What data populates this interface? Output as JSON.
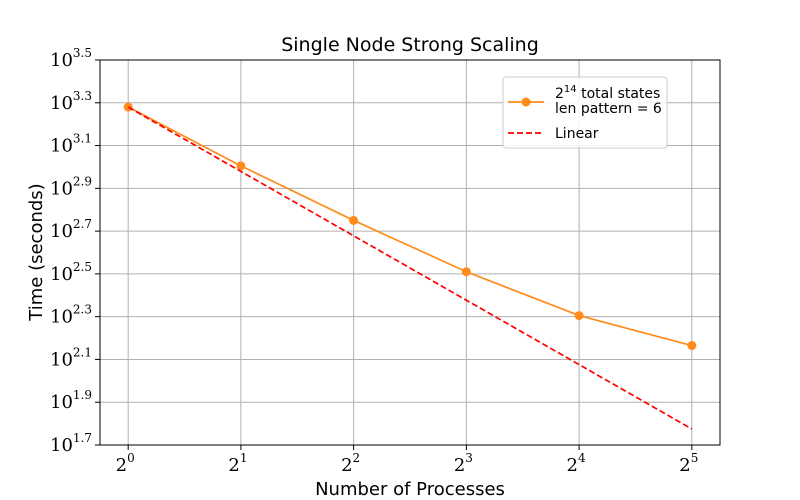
{
  "chart_data": {
    "type": "line",
    "title": "Single Node Strong Scaling",
    "xlabel": "Number of Processes",
    "ylabel": "Time (seconds)",
    "x_scale": "log2",
    "y_scale": "log10",
    "x": [
      1,
      2,
      4,
      8,
      16,
      32
    ],
    "x_tick_labels": [
      "2",
      "2",
      "2",
      "2",
      "2",
      "2"
    ],
    "x_tick_exponents": [
      "0",
      "1",
      "2",
      "3",
      "4",
      "5"
    ],
    "y_ticks": [
      {
        "base": "10",
        "exp": "3.5"
      },
      {
        "base": "10",
        "exp": "3.3"
      },
      {
        "base": "10",
        "exp": "3.1"
      },
      {
        "base": "10",
        "exp": "2.9"
      },
      {
        "base": "10",
        "exp": "2.7"
      },
      {
        "base": "10",
        "exp": "2.5"
      },
      {
        "base": "10",
        "exp": "2.3"
      },
      {
        "base": "10",
        "exp": "2.1"
      },
      {
        "base": "10",
        "exp": "1.9"
      },
      {
        "base": "10",
        "exp": "1.7"
      }
    ],
    "y_tick_values_log10": [
      3.5,
      3.3,
      3.1,
      2.9,
      2.7,
      2.5,
      2.3,
      2.1,
      1.9,
      1.7
    ],
    "ylim_log10": [
      1.7,
      3.5
    ],
    "grid": true,
    "legend_position": "top-right",
    "series": [
      {
        "label_base": "2",
        "label_exp": "14",
        "label_rest": " total states",
        "label_line2": "len pattern = 6",
        "color": "#ff8c1a",
        "style": "solid",
        "marker": "circle",
        "log10_values": [
          3.28,
          3.005,
          2.75,
          2.51,
          2.305,
          2.165
        ]
      },
      {
        "name": "Linear",
        "color": "#ff0000",
        "style": "dashed",
        "marker": "none",
        "log10_values": [
          3.28,
          2.979,
          2.678,
          2.377,
          2.076,
          1.775
        ]
      }
    ]
  }
}
